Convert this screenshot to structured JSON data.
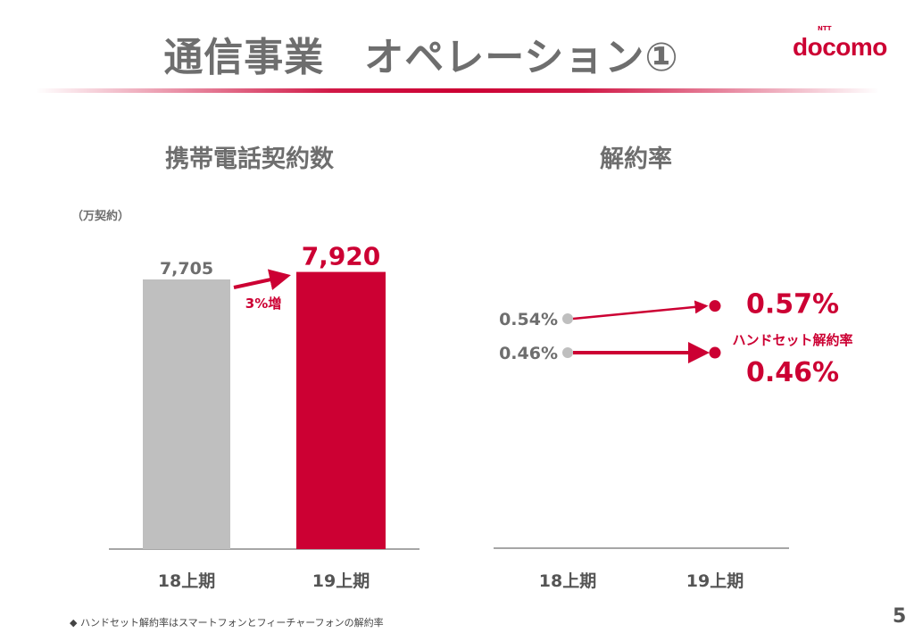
{
  "header": {
    "title": "通信事業　オペレーション①",
    "logo": "docomo",
    "logo_sub": "NTT"
  },
  "colors": {
    "accent": "#cc0033",
    "gray_bar": "#bfbfbf",
    "text_gray": "#6e6e6e"
  },
  "chart_data": [
    {
      "type": "bar",
      "title": "携帯電話契約数",
      "ylabel": "（万契約）",
      "categories": [
        "18上期",
        "19上期"
      ],
      "values": [
        7705,
        7920
      ],
      "value_labels": [
        "7,705",
        "7,920"
      ],
      "colors": [
        "#bfbfbf",
        "#cc0033"
      ],
      "annotation": "3%増",
      "ylim": [
        0,
        8000
      ]
    },
    {
      "type": "line",
      "title": "解約率",
      "categories": [
        "18上期",
        "19上期"
      ],
      "series": [
        {
          "values": [
            0.54,
            0.57
          ],
          "value_labels": [
            "0.54%",
            "0.57%"
          ]
        },
        {
          "name": "ハンドセット解約率",
          "values": [
            0.46,
            0.46
          ],
          "value_labels": [
            "0.46%",
            "0.46%"
          ]
        }
      ],
      "ylim": [
        0,
        0.6
      ]
    }
  ],
  "footnote": "◆ ハンドセット解約率はスマートフォンとフィーチャーフォンの解約率",
  "page_number": "5"
}
